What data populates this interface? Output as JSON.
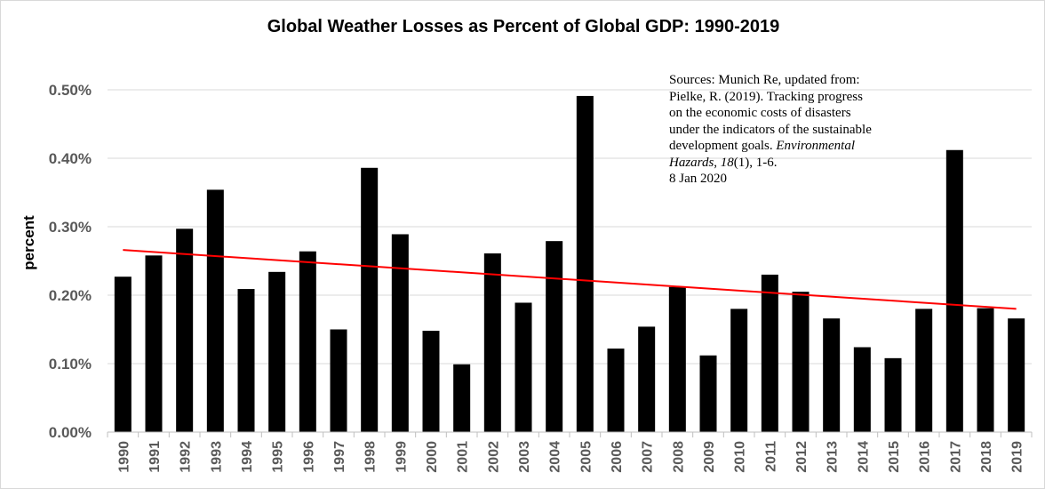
{
  "chart_data": {
    "type": "bar",
    "title": "Global Weather Losses as Percent of Global GDP: 1990-2019",
    "xlabel": "",
    "ylabel": "percent",
    "ylim": [
      0,
      0.5
    ],
    "ytick_values": [
      0,
      0.1,
      0.2,
      0.3,
      0.4,
      0.5
    ],
    "ytick_labels": [
      "0.00%",
      "0.10%",
      "0.20%",
      "0.30%",
      "0.40%",
      "0.50%"
    ],
    "categories": [
      "1990",
      "1991",
      "1992",
      "1993",
      "1994",
      "1995",
      "1996",
      "1997",
      "1998",
      "1999",
      "2000",
      "2001",
      "2002",
      "2003",
      "2004",
      "2005",
      "2006",
      "2007",
      "2008",
      "2009",
      "2010",
      "2011",
      "2012",
      "2013",
      "2014",
      "2015",
      "2016",
      "2017",
      "2018",
      "2019"
    ],
    "values": [
      0.227,
      0.258,
      0.297,
      0.354,
      0.209,
      0.234,
      0.264,
      0.15,
      0.386,
      0.289,
      0.148,
      0.099,
      0.261,
      0.189,
      0.279,
      0.491,
      0.122,
      0.154,
      0.212,
      0.112,
      0.18,
      0.23,
      0.205,
      0.166,
      0.124,
      0.108,
      0.18,
      0.412,
      0.181,
      0.166
    ],
    "trendline": {
      "x_start": "1990",
      "y_start": 0.266,
      "x_end": "2019",
      "y_end": 0.18
    },
    "grid": true,
    "colors": {
      "bars": "#000000",
      "trend": "#ff0000",
      "grid": "#d9d9d9",
      "axis": "#bfbfbf"
    }
  },
  "annotation": {
    "line1": "Sources: Munich Re, updated from:",
    "line2": "Pielke, R. (2019). Tracking  progress",
    "line3": "on the economic costs of disasters",
    "line4": "under the indicators of the sustainable",
    "line5_plain": "development goals. ",
    "line5_italic": "Environmental",
    "line6_italic_a": "Hazards",
    "line6_sep": ", ",
    "line6_italic_b": "18",
    "line6_rest": "(1), 1-6.",
    "line7": "8 Jan 2020"
  }
}
